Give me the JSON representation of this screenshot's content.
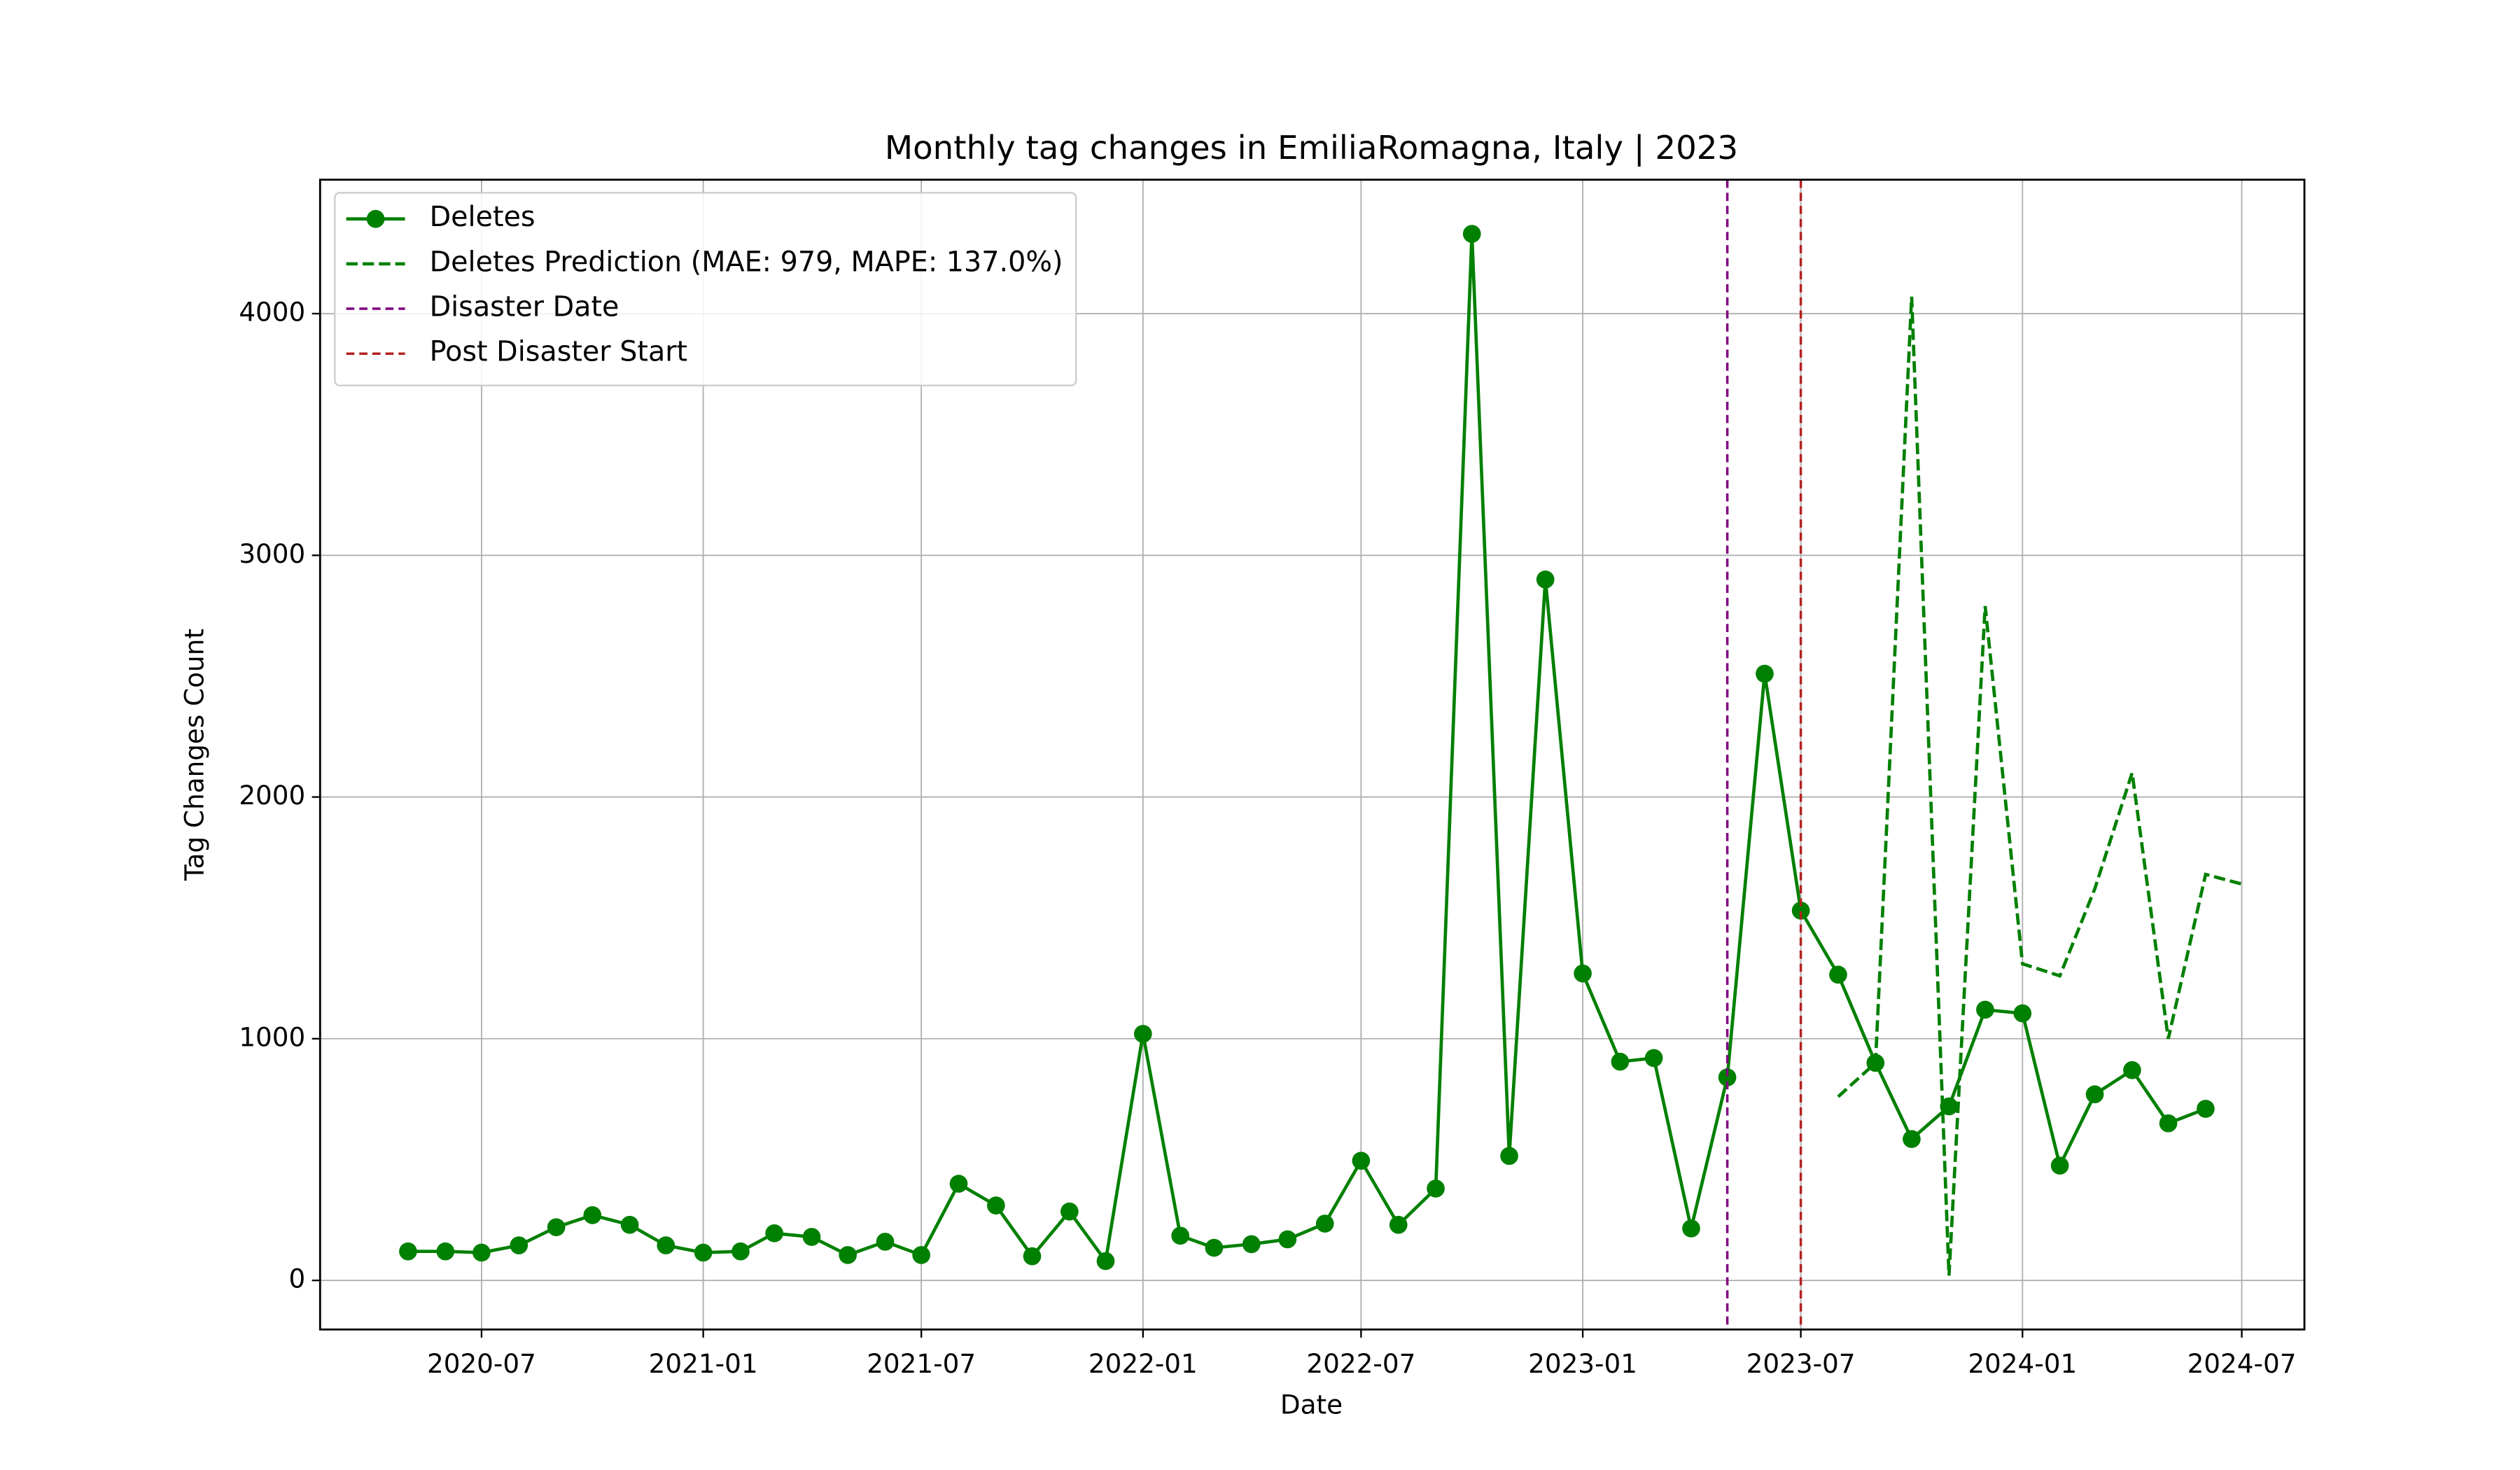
{
  "chart_data": {
    "type": "line",
    "title": "Monthly tag changes in EmiliaRomagna, Italy | 2023",
    "x_label": "Date",
    "y_label": "Tag Changes Count",
    "x": [
      "2020-05",
      "2020-06",
      "2020-07",
      "2020-08",
      "2020-09",
      "2020-10",
      "2020-11",
      "2020-12",
      "2021-01",
      "2021-02",
      "2021-03",
      "2021-04",
      "2021-05",
      "2021-06",
      "2021-07",
      "2021-08",
      "2021-09",
      "2021-10",
      "2021-11",
      "2021-12",
      "2022-01",
      "2022-02",
      "2022-03",
      "2022-04",
      "2022-05",
      "2022-06",
      "2022-07",
      "2022-08",
      "2022-09",
      "2022-10",
      "2022-11",
      "2022-12",
      "2023-01",
      "2023-02",
      "2023-03",
      "2023-04",
      "2023-05",
      "2023-06",
      "2023-07",
      "2023-08",
      "2023-09",
      "2023-10",
      "2023-11",
      "2023-12",
      "2024-01",
      "2024-02",
      "2024-03",
      "2024-04",
      "2024-05",
      "2024-06",
      "2024-07"
    ],
    "series": [
      {
        "name": "Deletes",
        "color": "green",
        "linestyle": "solid",
        "marker": "circle",
        "values": [
          120,
          120,
          115,
          145,
          220,
          270,
          230,
          145,
          115,
          120,
          195,
          180,
          105,
          160,
          105,
          400,
          310,
          100,
          285,
          80,
          1020,
          185,
          135,
          150,
          170,
          235,
          495,
          230,
          380,
          4330,
          515,
          2900,
          1270,
          905,
          920,
          215,
          840,
          2510,
          1530,
          1265,
          900,
          585,
          720,
          1120,
          1105,
          475,
          770,
          870,
          650,
          710,
          null
        ]
      },
      {
        "name": "Deletes Prediction (MAE: 979, MAPE: 137.0%)",
        "color": "green",
        "linestyle": "dashed",
        "marker": "none",
        "values": [
          null,
          null,
          null,
          null,
          null,
          null,
          null,
          null,
          null,
          null,
          null,
          null,
          null,
          null,
          null,
          null,
          null,
          null,
          null,
          null,
          null,
          null,
          null,
          null,
          null,
          null,
          null,
          null,
          null,
          null,
          null,
          null,
          null,
          null,
          null,
          null,
          null,
          null,
          null,
          760,
          900,
          4070,
          20,
          2790,
          1310,
          1260,
          1620,
          2100,
          1000,
          1680,
          1640
        ]
      }
    ],
    "vlines": [
      {
        "name": "Disaster Date",
        "x": "2023-05",
        "color": "purple"
      },
      {
        "name": "Post Disaster Start",
        "x": "2023-07",
        "color": "#b22222"
      }
    ],
    "xlim": [
      "2020-02-18",
      "2024-08-22"
    ],
    "ylim": [
      -203,
      4554
    ],
    "xticks": [
      "2020-07",
      "2021-01",
      "2021-07",
      "2022-01",
      "2022-07",
      "2023-01",
      "2023-07",
      "2024-01",
      "2024-07"
    ],
    "yticks": [
      0,
      1000,
      2000,
      3000,
      4000
    ],
    "grid": true,
    "legend": "upper left"
  }
}
